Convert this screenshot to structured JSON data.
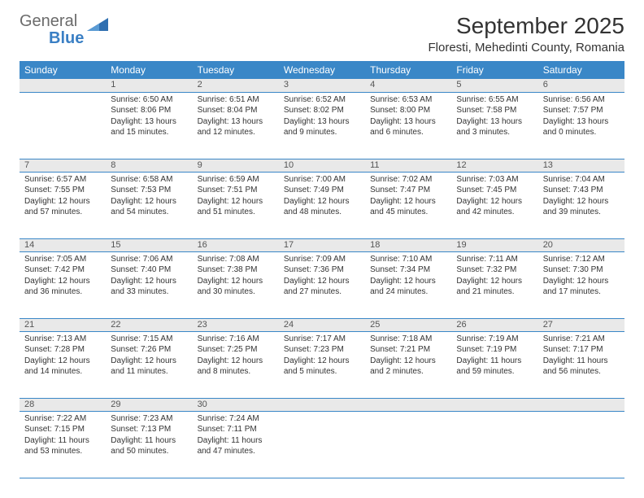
{
  "logo": {
    "word1": "General",
    "word2": "Blue"
  },
  "title": "September 2025",
  "subtitle": "Floresti, Mehedinti County, Romania",
  "colors": {
    "header_bg": "#3a87c7",
    "header_text": "#ffffff",
    "daynum_bg": "#e9e9e9",
    "border": "#3a87c7",
    "logo_gray": "#6b6b6b",
    "logo_blue": "#3a7fc4"
  },
  "day_labels": [
    "Sunday",
    "Monday",
    "Tuesday",
    "Wednesday",
    "Thursday",
    "Friday",
    "Saturday"
  ],
  "weeks": [
    [
      {
        "n": "",
        "sr": "",
        "ss": "",
        "dl": ""
      },
      {
        "n": "1",
        "sr": "Sunrise: 6:50 AM",
        "ss": "Sunset: 8:06 PM",
        "dl": "Daylight: 13 hours and 15 minutes."
      },
      {
        "n": "2",
        "sr": "Sunrise: 6:51 AM",
        "ss": "Sunset: 8:04 PM",
        "dl": "Daylight: 13 hours and 12 minutes."
      },
      {
        "n": "3",
        "sr": "Sunrise: 6:52 AM",
        "ss": "Sunset: 8:02 PM",
        "dl": "Daylight: 13 hours and 9 minutes."
      },
      {
        "n": "4",
        "sr": "Sunrise: 6:53 AM",
        "ss": "Sunset: 8:00 PM",
        "dl": "Daylight: 13 hours and 6 minutes."
      },
      {
        "n": "5",
        "sr": "Sunrise: 6:55 AM",
        "ss": "Sunset: 7:58 PM",
        "dl": "Daylight: 13 hours and 3 minutes."
      },
      {
        "n": "6",
        "sr": "Sunrise: 6:56 AM",
        "ss": "Sunset: 7:57 PM",
        "dl": "Daylight: 13 hours and 0 minutes."
      }
    ],
    [
      {
        "n": "7",
        "sr": "Sunrise: 6:57 AM",
        "ss": "Sunset: 7:55 PM",
        "dl": "Daylight: 12 hours and 57 minutes."
      },
      {
        "n": "8",
        "sr": "Sunrise: 6:58 AM",
        "ss": "Sunset: 7:53 PM",
        "dl": "Daylight: 12 hours and 54 minutes."
      },
      {
        "n": "9",
        "sr": "Sunrise: 6:59 AM",
        "ss": "Sunset: 7:51 PM",
        "dl": "Daylight: 12 hours and 51 minutes."
      },
      {
        "n": "10",
        "sr": "Sunrise: 7:00 AM",
        "ss": "Sunset: 7:49 PM",
        "dl": "Daylight: 12 hours and 48 minutes."
      },
      {
        "n": "11",
        "sr": "Sunrise: 7:02 AM",
        "ss": "Sunset: 7:47 PM",
        "dl": "Daylight: 12 hours and 45 minutes."
      },
      {
        "n": "12",
        "sr": "Sunrise: 7:03 AM",
        "ss": "Sunset: 7:45 PM",
        "dl": "Daylight: 12 hours and 42 minutes."
      },
      {
        "n": "13",
        "sr": "Sunrise: 7:04 AM",
        "ss": "Sunset: 7:43 PM",
        "dl": "Daylight: 12 hours and 39 minutes."
      }
    ],
    [
      {
        "n": "14",
        "sr": "Sunrise: 7:05 AM",
        "ss": "Sunset: 7:42 PM",
        "dl": "Daylight: 12 hours and 36 minutes."
      },
      {
        "n": "15",
        "sr": "Sunrise: 7:06 AM",
        "ss": "Sunset: 7:40 PM",
        "dl": "Daylight: 12 hours and 33 minutes."
      },
      {
        "n": "16",
        "sr": "Sunrise: 7:08 AM",
        "ss": "Sunset: 7:38 PM",
        "dl": "Daylight: 12 hours and 30 minutes."
      },
      {
        "n": "17",
        "sr": "Sunrise: 7:09 AM",
        "ss": "Sunset: 7:36 PM",
        "dl": "Daylight: 12 hours and 27 minutes."
      },
      {
        "n": "18",
        "sr": "Sunrise: 7:10 AM",
        "ss": "Sunset: 7:34 PM",
        "dl": "Daylight: 12 hours and 24 minutes."
      },
      {
        "n": "19",
        "sr": "Sunrise: 7:11 AM",
        "ss": "Sunset: 7:32 PM",
        "dl": "Daylight: 12 hours and 21 minutes."
      },
      {
        "n": "20",
        "sr": "Sunrise: 7:12 AM",
        "ss": "Sunset: 7:30 PM",
        "dl": "Daylight: 12 hours and 17 minutes."
      }
    ],
    [
      {
        "n": "21",
        "sr": "Sunrise: 7:13 AM",
        "ss": "Sunset: 7:28 PM",
        "dl": "Daylight: 12 hours and 14 minutes."
      },
      {
        "n": "22",
        "sr": "Sunrise: 7:15 AM",
        "ss": "Sunset: 7:26 PM",
        "dl": "Daylight: 12 hours and 11 minutes."
      },
      {
        "n": "23",
        "sr": "Sunrise: 7:16 AM",
        "ss": "Sunset: 7:25 PM",
        "dl": "Daylight: 12 hours and 8 minutes."
      },
      {
        "n": "24",
        "sr": "Sunrise: 7:17 AM",
        "ss": "Sunset: 7:23 PM",
        "dl": "Daylight: 12 hours and 5 minutes."
      },
      {
        "n": "25",
        "sr": "Sunrise: 7:18 AM",
        "ss": "Sunset: 7:21 PM",
        "dl": "Daylight: 12 hours and 2 minutes."
      },
      {
        "n": "26",
        "sr": "Sunrise: 7:19 AM",
        "ss": "Sunset: 7:19 PM",
        "dl": "Daylight: 11 hours and 59 minutes."
      },
      {
        "n": "27",
        "sr": "Sunrise: 7:21 AM",
        "ss": "Sunset: 7:17 PM",
        "dl": "Daylight: 11 hours and 56 minutes."
      }
    ],
    [
      {
        "n": "28",
        "sr": "Sunrise: 7:22 AM",
        "ss": "Sunset: 7:15 PM",
        "dl": "Daylight: 11 hours and 53 minutes."
      },
      {
        "n": "29",
        "sr": "Sunrise: 7:23 AM",
        "ss": "Sunset: 7:13 PM",
        "dl": "Daylight: 11 hours and 50 minutes."
      },
      {
        "n": "30",
        "sr": "Sunrise: 7:24 AM",
        "ss": "Sunset: 7:11 PM",
        "dl": "Daylight: 11 hours and 47 minutes."
      },
      {
        "n": "",
        "sr": "",
        "ss": "",
        "dl": ""
      },
      {
        "n": "",
        "sr": "",
        "ss": "",
        "dl": ""
      },
      {
        "n": "",
        "sr": "",
        "ss": "",
        "dl": ""
      },
      {
        "n": "",
        "sr": "",
        "ss": "",
        "dl": ""
      }
    ]
  ]
}
